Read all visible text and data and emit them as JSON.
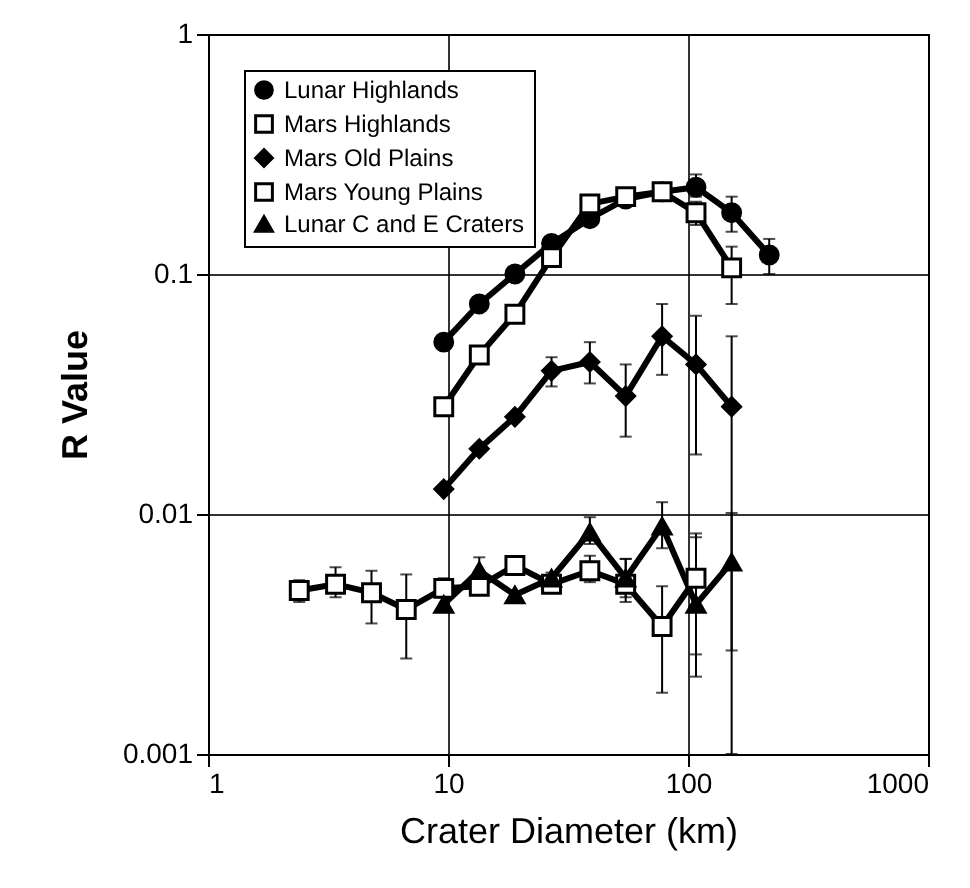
{
  "chart_data": {
    "type": "line",
    "xlabel": "Crater Diameter (km)",
    "ylabel": "R Value",
    "log": "xy",
    "xlim": [
      1,
      1000
    ],
    "xticks": [
      1,
      10,
      100,
      1000
    ],
    "ylim": [
      0.001,
      1
    ],
    "yticks": [
      0.001,
      0.01,
      0.1,
      1
    ],
    "grid": true,
    "legend": "top left",
    "series": [
      {
        "name": "Lunar Highlands",
        "color": "#000000",
        "marker": "circle",
        "x": [
          9.6,
          13.5,
          19,
          27,
          39,
          55,
          78,
          108,
          152,
          218
        ],
        "values": [
          0.052,
          0.075,
          0.1,
          0.134,
          0.17,
          0.205,
          0.22,
          0.23,
          0.18,
          0.12
        ],
        "errors": [
          null,
          null,
          null,
          null,
          null,
          null,
          null,
          [
            0.21,
            0.26
          ],
          [
            0.15,
            0.21
          ],
          [
            0.1,
            0.14
          ]
        ]
      },
      {
        "name": "Mars Highlands",
        "color": "#000000",
        "marker": "square",
        "x": [
          9.6,
          13.5,
          19,
          27,
          39,
          55,
          78,
          108,
          152
        ],
        "values": [
          0.028,
          0.046,
          0.068,
          0.117,
          0.196,
          0.21,
          0.22,
          0.18,
          0.106
        ],
        "errors": [
          null,
          null,
          null,
          null,
          null,
          null,
          null,
          [
            0.16,
            0.2
          ],
          [
            0.075,
            0.13
          ]
        ]
      },
      {
        "name": "Mars Old Plains",
        "color": "#000000",
        "marker": "diamond",
        "x": [
          9.6,
          13.5,
          19,
          27,
          39,
          55,
          78,
          108,
          152
        ],
        "values": [
          0.0127,
          0.0187,
          0.0254,
          0.0395,
          0.043,
          0.031,
          0.055,
          0.042,
          0.028
        ],
        "errors": [
          null,
          null,
          null,
          [
            0.034,
            0.045
          ],
          [
            0.035,
            0.052
          ],
          [
            0.021,
            0.042
          ],
          [
            0.038,
            0.075
          ],
          [
            0.0177,
            0.067
          ],
          [
            0.001,
            0.055
          ]
        ]
      },
      {
        "name": "Mars Young Plains",
        "color": "#000000",
        "marker": "square",
        "x": [
          2.4,
          3.4,
          4.8,
          6.7,
          9.6,
          13.5,
          19,
          27,
          39,
          55,
          78,
          108
        ],
        "values": [
          0.0048,
          0.0051,
          0.0047,
          0.004,
          0.0049,
          0.005,
          0.0061,
          0.0051,
          0.0058,
          0.0051,
          0.0034,
          0.0054
        ],
        "errors": [
          [
            0.0043,
            0.0053
          ],
          [
            0.0045,
            0.006
          ],
          [
            0.0035,
            0.0058
          ],
          [
            0.0025,
            0.0056
          ],
          [
            0.0045,
            0.0054
          ],
          null,
          [
            0.0056,
            0.0066
          ],
          [
            0.0047,
            0.0057
          ],
          [
            0.0052,
            0.0067
          ],
          [
            0.0043,
            0.0065
          ],
          [
            0.0018,
            0.005
          ],
          [
            0.0021,
            0.008
          ]
        ]
      },
      {
        "name": "Lunar C and E Craters",
        "color": "#000000",
        "marker": "triangle",
        "x": [
          9.6,
          13.5,
          19,
          27,
          39,
          55,
          78,
          108,
          152
        ],
        "values": [
          0.0042,
          0.0058,
          0.0046,
          0.0054,
          0.0084,
          0.0054,
          0.0089,
          0.0042,
          0.0063
        ],
        "errors": [
          null,
          [
            0.0051,
            0.0066
          ],
          null,
          null,
          [
            0.0075,
            0.0097
          ],
          [
            0.0045,
            0.0065
          ],
          [
            0.0072,
            0.0112
          ],
          [
            0.0026,
            0.0083
          ],
          [
            0.0027,
            0.0101
          ]
        ]
      }
    ]
  }
}
